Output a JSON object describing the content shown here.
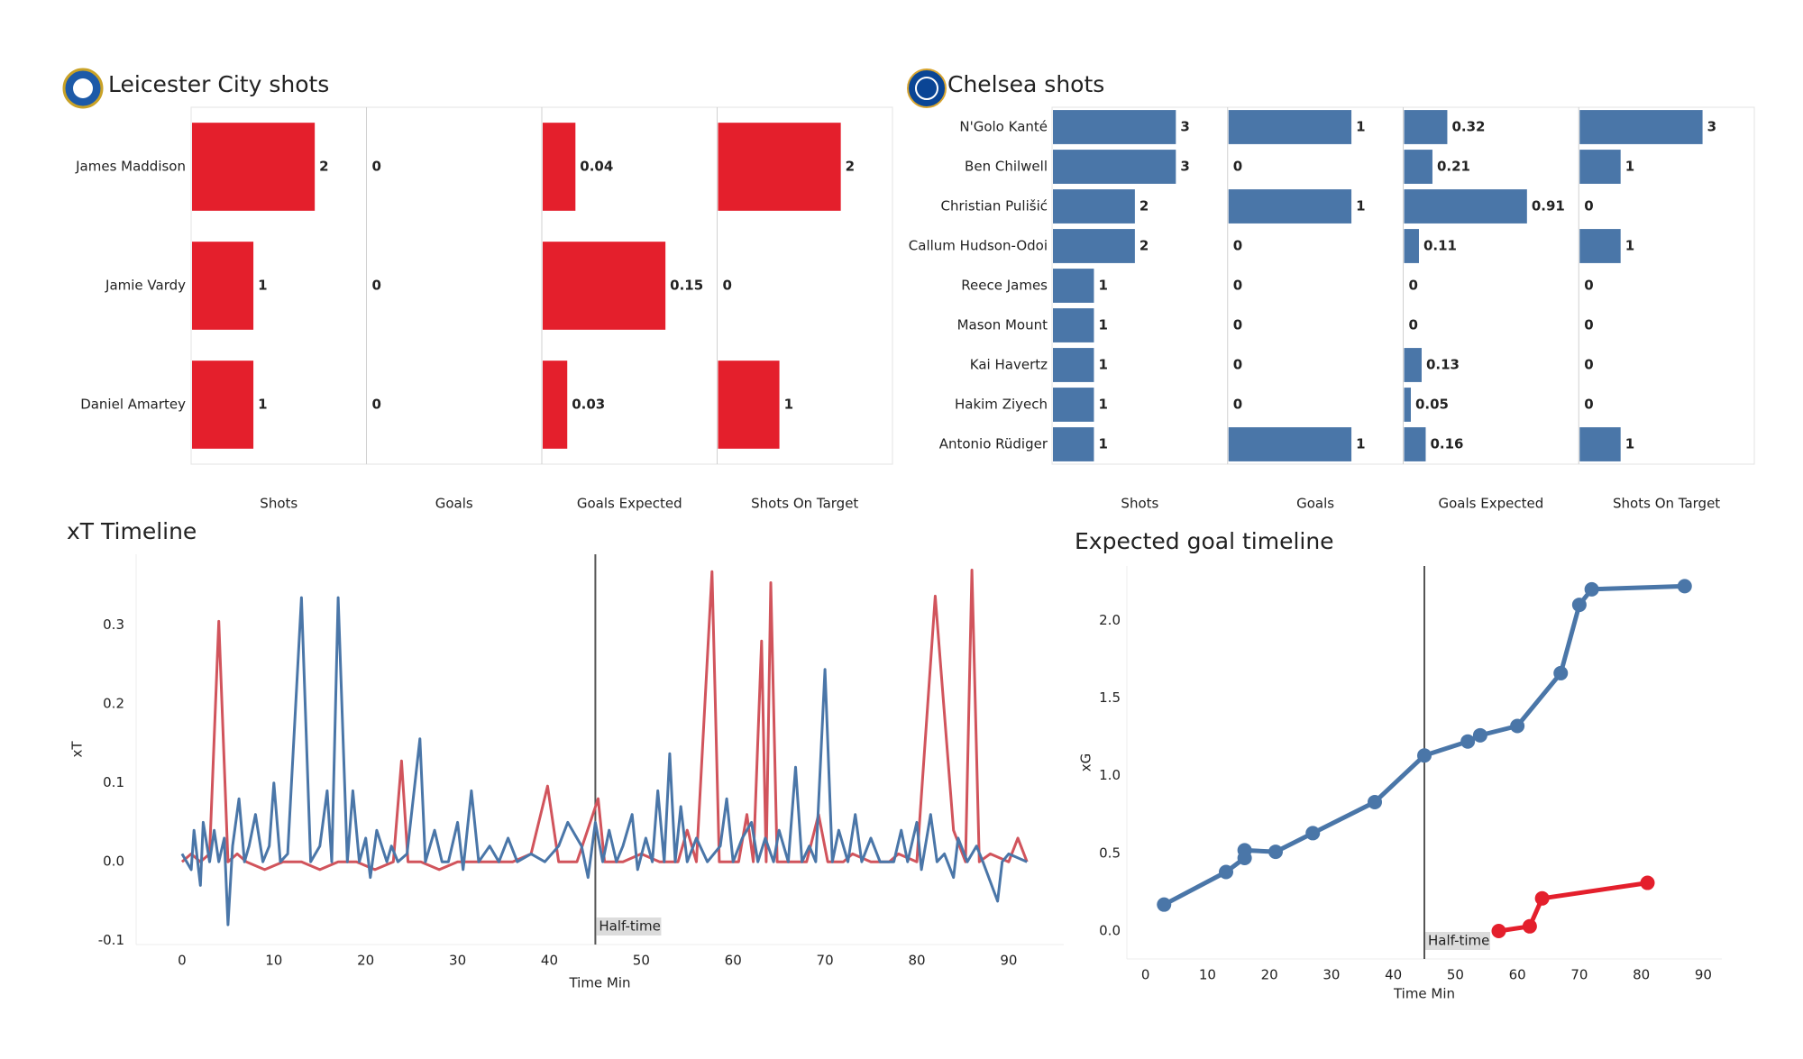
{
  "chart_data": [
    {
      "type": "panel_bar",
      "title": "Leicester City shots",
      "color": "#e41f2c",
      "categories": [
        "James Maddison",
        "Jamie Vardy",
        "Daniel Amartey"
      ],
      "panels": [
        {
          "name": "Shots",
          "values": [
            2,
            1,
            1
          ]
        },
        {
          "name": "Goals",
          "values": [
            0,
            0,
            0
          ]
        },
        {
          "name": "Goals Expected",
          "values": [
            0.04,
            0.15,
            0.03
          ]
        },
        {
          "name": "Shots On Target",
          "values": [
            2,
            0,
            1
          ]
        }
      ]
    },
    {
      "type": "panel_bar",
      "title": "Chelsea shots",
      "color": "#4a76a8",
      "categories": [
        "N'Golo Kanté",
        "Ben Chilwell",
        "Christian Pulišić",
        "Callum Hudson-Odoi",
        "Reece James",
        "Mason Mount",
        "Kai Havertz",
        "Hakim Ziyech",
        "Antonio Rüdiger"
      ],
      "panels": [
        {
          "name": "Shots",
          "values": [
            3,
            3,
            2,
            2,
            1,
            1,
            1,
            1,
            1
          ]
        },
        {
          "name": "Goals",
          "values": [
            1,
            0,
            1,
            0,
            0,
            0,
            0,
            0,
            1
          ]
        },
        {
          "name": "Goals Expected",
          "values": [
            0.32,
            0.21,
            0.91,
            0.11,
            0,
            0,
            0.13,
            0.05,
            0.16
          ]
        },
        {
          "name": "Shots On Target",
          "values": [
            3,
            1,
            0,
            1,
            0,
            0,
            0,
            0,
            1
          ]
        }
      ]
    },
    {
      "type": "line",
      "title": "xT Timeline",
      "xlabel": "Time Min",
      "ylabel": "xT",
      "xlim": [
        -5,
        96
      ],
      "ylim": [
        -0.105,
        0.39
      ],
      "xticks": [
        0,
        10,
        20,
        30,
        40,
        50,
        60,
        70,
        80,
        90
      ],
      "yticks": [
        -0.1,
        {
          "value": 0,
          "label": "0.0"
        },
        0.1,
        0.2,
        0.3
      ],
      "vline": {
        "x": 45,
        "label": "Half-time"
      },
      "markers": false,
      "series": [
        {
          "color": "#d1545c",
          "x": [
            0,
            1,
            2,
            3,
            4,
            5,
            6,
            7,
            9,
            11,
            13,
            15,
            17,
            19,
            21,
            23,
            23.9,
            24.6,
            26,
            28,
            30,
            32,
            34,
            36,
            38,
            39.8,
            41,
            43,
            45.3,
            46,
            48,
            50,
            52,
            54,
            55,
            56,
            57.7,
            58.5,
            59.5,
            60.6,
            61.5,
            62.2,
            63.1,
            63.6,
            64.1,
            64.8,
            66,
            68,
            69.3,
            70.3,
            72,
            73,
            75,
            77,
            78,
            80,
            82,
            84,
            85.3,
            86,
            86.8,
            88,
            90,
            91,
            92
          ],
          "values": [
            0,
            0.01,
            0,
            0.01,
            0.305,
            0,
            0.01,
            0,
            -0.01,
            0,
            0,
            -0.01,
            0,
            0,
            -0.01,
            0,
            0.128,
            0,
            0,
            -0.01,
            0,
            0,
            0,
            0,
            0.01,
            0.096,
            0,
            0,
            0.08,
            0,
            0,
            0.01,
            0,
            0,
            0.04,
            0,
            0.368,
            0,
            0,
            0,
            0.06,
            0,
            0.28,
            0,
            0.354,
            0,
            0,
            0,
            0.06,
            0,
            0,
            0.01,
            0,
            0,
            0.01,
            0,
            0.337,
            0.04,
            0,
            0.37,
            0,
            0.01,
            0,
            0.03,
            0
          ]
        },
        {
          "color": "#4a76a8",
          "x": [
            0,
            1,
            1.3,
            2,
            2.3,
            3,
            3.5,
            4,
            4.6,
            5,
            5.5,
            6.2,
            6.8,
            7.3,
            8,
            8.8,
            9.5,
            10,
            10.7,
            11.5,
            13,
            14,
            15,
            15.8,
            16.3,
            17,
            18,
            18.6,
            19.3,
            20,
            20.5,
            21.2,
            22.3,
            22.8,
            23.5,
            24.5,
            25.9,
            26.5,
            27.5,
            28.3,
            29,
            30,
            30.6,
            31.5,
            32.3,
            33.5,
            34.5,
            35.5,
            36.5,
            38,
            39.5,
            41,
            42,
            43.5,
            44.2,
            45,
            45.8,
            46.5,
            47.3,
            48,
            49,
            49.6,
            50.5,
            51.2,
            51.8,
            52.5,
            53.1,
            53.7,
            54.3,
            55,
            56,
            57.2,
            58.6,
            59.3,
            60,
            61,
            62,
            62.7,
            63.5,
            64.4,
            65,
            66,
            66.8,
            67.5,
            68.3,
            69,
            70,
            70.8,
            71.5,
            72.5,
            73.3,
            74,
            75,
            76,
            77.5,
            78.3,
            79,
            80,
            80.5,
            81.5,
            82.2,
            83,
            84,
            84.5,
            85.5,
            86.5,
            87.2,
            88.8,
            89.3,
            90,
            92
          ],
          "values": [
            0.01,
            -0.01,
            0.04,
            -0.03,
            0.05,
            0,
            0.04,
            0,
            0.03,
            -0.08,
            0.02,
            0.08,
            0,
            0.02,
            0.06,
            0,
            0.02,
            0.1,
            0,
            0.01,
            0.335,
            0,
            0.02,
            0.09,
            0,
            0.335,
            0,
            0.09,
            0,
            0.03,
            -0.02,
            0.04,
            0,
            0.02,
            0,
            0.01,
            0.156,
            0,
            0.04,
            0,
            0,
            0.05,
            -0.01,
            0.09,
            0,
            0.02,
            0,
            0.03,
            0,
            0.01,
            0,
            0.02,
            0.05,
            0.02,
            -0.02,
            0.05,
            0,
            0.04,
            0,
            0.02,
            0.06,
            -0.01,
            0.03,
            0,
            0.09,
            0,
            0.137,
            0,
            0.07,
            0,
            0.03,
            0,
            0.02,
            0.08,
            0,
            0.03,
            0.05,
            0,
            0.03,
            0,
            0.04,
            0,
            0.12,
            0,
            0.02,
            0,
            0.244,
            0,
            0.04,
            0,
            0.06,
            0,
            0.03,
            0,
            0,
            0.04,
            0,
            0.05,
            -0.01,
            0.06,
            0,
            0.01,
            -0.02,
            0.03,
            0,
            0.02,
            0,
            -0.05,
            0,
            0.01,
            0
          ]
        }
      ]
    },
    {
      "type": "line",
      "title": "Expected goal timeline",
      "xlabel": "Time Min",
      "ylabel": "xG",
      "xlim": [
        -3,
        93
      ],
      "ylim": [
        -0.18,
        2.35
      ],
      "xticks": [
        0,
        10,
        20,
        30,
        40,
        50,
        60,
        70,
        80,
        90
      ],
      "yticks": [
        {
          "value": 0,
          "label": "0.0"
        },
        0.5,
        {
          "value": 1,
          "label": "1.0"
        },
        1.5,
        {
          "value": 2,
          "label": "2.0"
        }
      ],
      "vline": {
        "x": 45,
        "label": "Half-time"
      },
      "markers": true,
      "series": [
        {
          "color": "#4a76a8",
          "x": [
            3,
            13,
            16,
            16,
            21,
            27,
            37,
            45,
            52,
            54,
            60,
            67,
            70,
            72,
            87
          ],
          "values": [
            0.17,
            0.38,
            0.47,
            0.52,
            0.51,
            0.63,
            0.83,
            1.13,
            1.22,
            1.26,
            1.32,
            1.66,
            2.1,
            2.2,
            2.22
          ]
        },
        {
          "color": "#e41f2c",
          "x": [
            57,
            62,
            64,
            81
          ],
          "values": [
            0,
            0.03,
            0.21,
            0.31
          ]
        }
      ]
    }
  ]
}
